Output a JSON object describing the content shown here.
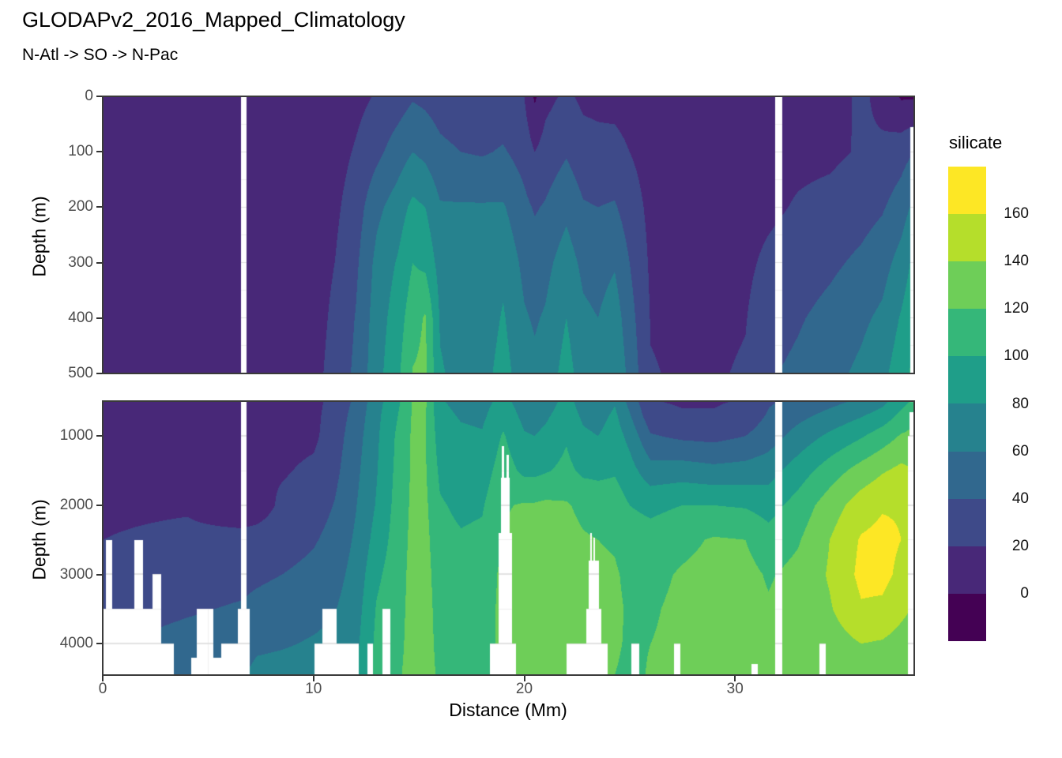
{
  "header": {
    "title": "GLODAPv2_2016_Mapped_Climatology",
    "subtitle": "N-Atl -> SO -> N-Pac"
  },
  "axes": {
    "x": {
      "label": "Distance (Mm)",
      "ticks": [
        0,
        10,
        20,
        30
      ]
    },
    "y": {
      "label": "Depth (m)",
      "top_ticks": [
        0,
        100,
        200,
        300,
        400,
        500
      ],
      "bottom_ticks": [
        1000,
        2000,
        3000,
        4000
      ]
    }
  },
  "legend": {
    "title": "silicate",
    "tick_labels": [
      160,
      140,
      120,
      100,
      80,
      60,
      40,
      20,
      0
    ]
  },
  "chart_data": {
    "type": "heatmap",
    "subtype": "filled_contour_section",
    "variable": "silicate",
    "title": "GLODAPv2_2016_Mapped_Climatology",
    "subtitle": "N-Atl -> SO -> N-Pac",
    "xlabel": "Distance (Mm)",
    "ylabel": "Depth (m)",
    "x_range": [
      0,
      38.5
    ],
    "panels": [
      {
        "depth_range": [
          0,
          500
        ]
      },
      {
        "depth_range": [
          500,
          4450
        ]
      }
    ],
    "levels": [
      0,
      20,
      40,
      60,
      80,
      100,
      120,
      140,
      160
    ],
    "colors": [
      "#440154",
      "#482878",
      "#3e4a89",
      "#31688e",
      "#26828e",
      "#1f9e89",
      "#35b779",
      "#6ece58",
      "#b5de2b",
      "#fde725"
    ],
    "grid_lines": {
      "major": "#e2e2e2",
      "minor": "#efefef"
    },
    "grid": {
      "x": [
        0,
        4,
        6.6,
        7.3,
        8.5,
        10,
        11,
        12,
        13,
        14,
        14.7,
        15.3,
        16,
        17,
        18,
        19,
        20,
        20.5,
        21,
        22,
        22.8,
        23.5,
        24.3,
        25,
        26,
        27.5,
        29,
        30.5,
        31.6,
        33,
        34.5,
        36,
        37,
        37.9,
        38.5
      ],
      "depth": [
        0,
        100,
        200,
        300,
        400,
        500,
        700,
        1000,
        1500,
        2000,
        2500,
        3000,
        3500,
        4000,
        4450
      ],
      "values": [
        [
          4,
          6,
          8,
          9,
          10,
          11,
          12,
          13,
          15,
          17,
          20,
          26,
          32,
          38,
          46
        ],
        [
          4,
          6,
          8,
          9,
          10,
          11,
          12,
          13,
          15,
          18,
          24,
          32,
          38,
          46,
          54
        ],
        [
          5,
          7,
          9,
          10,
          11,
          12,
          13,
          13,
          16,
          8,
          26,
          34,
          42,
          50,
          58
        ],
        [
          5,
          7,
          9,
          10,
          11,
          13,
          14,
          14,
          18,
          10,
          28,
          36,
          46,
          56,
          66
        ],
        [
          5,
          7,
          9,
          10,
          11,
          13,
          14,
          14,
          18,
          24,
          30,
          40,
          50,
          58,
          68
        ],
        [
          6,
          8,
          10,
          11,
          12,
          14,
          15,
          16,
          24,
          30,
          38,
          46,
          54,
          62,
          70
        ],
        [
          8,
          12,
          16,
          20,
          24,
          27,
          29,
          31,
          35,
          41,
          47,
          53,
          59,
          65,
          71
        ],
        [
          14,
          22,
          30,
          36,
          41,
          44,
          47,
          51,
          55,
          59,
          63,
          67,
          71,
          75,
          79
        ],
        [
          22,
          35,
          55,
          66,
          70,
          73,
          75,
          77,
          79,
          82,
          88,
          96,
          102,
          105,
          107
        ],
        [
          30,
          50,
          70,
          82,
          90,
          96,
          100,
          104,
          106,
          108,
          110,
          112,
          114,
          115,
          117
        ],
        [
          38,
          60,
          85,
          100,
          112,
          121,
          122,
          123,
          123,
          124,
          125,
          126,
          126,
          127,
          128
        ],
        [
          35,
          55,
          80,
          95,
          122,
          124,
          121,
          121,
          122,
          124,
          126,
          127,
          128,
          128,
          129
        ],
        [
          30,
          45,
          62,
          72,
          78,
          82,
          86,
          90,
          96,
          102,
          106,
          110,
          112,
          114,
          116
        ],
        [
          26,
          40,
          62,
          68,
          70,
          74,
          78,
          84,
          90,
          96,
          102,
          108,
          112,
          114,
          116
        ],
        [
          26,
          38,
          62,
          66,
          68,
          72,
          76,
          82,
          90,
          98,
          104,
          110,
          113,
          115,
          117
        ],
        [
          28,
          42,
          62,
          75,
          82,
          88,
          94,
          102,
          110,
          118,
          122,
          124,
          124,
          123,
          122
        ],
        [
          20,
          32,
          45,
          55,
          62,
          68,
          74,
          82,
          95,
          122,
          126,
          128,
          128,
          128,
          126
        ],
        [
          -3,
          20,
          38,
          50,
          58,
          64,
          72,
          80,
          95,
          122,
          127,
          129,
          129,
          128,
          126
        ],
        [
          14,
          28,
          42,
          54,
          62,
          68,
          76,
          85,
          98,
          124,
          128,
          130,
          130,
          129,
          127
        ],
        [
          24,
          38,
          55,
          70,
          80,
          88,
          92,
          98,
          105,
          122,
          127,
          129,
          129,
          128,
          126
        ],
        [
          16,
          28,
          42,
          55,
          64,
          70,
          76,
          84,
          96,
          115,
          122,
          126,
          127,
          126,
          124
        ],
        [
          15,
          26,
          40,
          52,
          60,
          66,
          72,
          80,
          95,
          112,
          120,
          124,
          125,
          124,
          122
        ],
        [
          14,
          26,
          42,
          58,
          70,
          78,
          84,
          90,
          98,
          110,
          118,
          122,
          123,
          122,
          120
        ],
        [
          12,
          20,
          30,
          40,
          48,
          54,
          62,
          74,
          88,
          100,
          110,
          116,
          118,
          118,
          117
        ],
        [
          9,
          12,
          15,
          17,
          19,
          21,
          27,
          42,
          68,
          95,
          108,
          115,
          118,
          120,
          121
        ],
        [
          8,
          10,
          13,
          15,
          17,
          18,
          22,
          36,
          70,
          100,
          115,
          122,
          124,
          124,
          122
        ],
        [
          8,
          10,
          12,
          14,
          16,
          18,
          22,
          34,
          66,
          100,
          122,
          126,
          128,
          126,
          124
        ],
        [
          8,
          10,
          13,
          16,
          19,
          22,
          28,
          40,
          68,
          98,
          120,
          126,
          128,
          126,
          122
        ],
        [
          9,
          12,
          16,
          24,
          32,
          38,
          42,
          50,
          72,
          92,
          108,
          118,
          122,
          122,
          120
        ],
        [
          10,
          15,
          22,
          30,
          38,
          44,
          54,
          68,
          90,
          108,
          118,
          126,
          130,
          128,
          124
        ],
        [
          10,
          16,
          26,
          36,
          46,
          54,
          66,
          84,
          110,
          130,
          140,
          142,
          138,
          130,
          124
        ],
        [
          24,
          22,
          32,
          44,
          56,
          64,
          78,
          98,
          128,
          150,
          162,
          165,
          158,
          140,
          126
        ],
        [
          14,
          24,
          38,
          52,
          64,
          74,
          88,
          110,
          138,
          158,
          166,
          166,
          156,
          138,
          124
        ],
        [
          -2,
          32,
          50,
          68,
          82,
          92,
          105,
          122,
          145,
          158,
          160,
          155,
          145,
          132,
          122
        ],
        [
          -2,
          40,
          65,
          85,
          95,
          105,
          115,
          125,
          140,
          148,
          150,
          145,
          138,
          128,
          120
        ]
      ]
    },
    "gaps": [
      [
        6.53,
        6.8,
        0,
        4460
      ],
      [
        31.93,
        32.27,
        0,
        4460
      ],
      [
        38.33,
        38.55,
        55,
        500
      ],
      [
        38.3,
        38.55,
        650,
        1000
      ],
      [
        38.2,
        38.55,
        1000,
        4460
      ],
      [
        0,
        2.75,
        3500,
        4460
      ],
      [
        0.12,
        0.45,
        2500,
        4460
      ],
      [
        1.5,
        1.9,
        2500,
        4460
      ],
      [
        2.35,
        2.75,
        3000,
        4460
      ],
      [
        2.75,
        3.35,
        4000,
        4460
      ],
      [
        4.45,
        5.25,
        3500,
        4460
      ],
      [
        4.2,
        5.6,
        4200,
        4460
      ],
      [
        5.6,
        6.53,
        4000,
        4460
      ],
      [
        6.4,
        6.95,
        3500,
        4460
      ],
      [
        10.4,
        11.1,
        3500,
        4460
      ],
      [
        10.05,
        12.15,
        4000,
        4460
      ],
      [
        12.55,
        12.8,
        4000,
        4460
      ],
      [
        13.25,
        13.65,
        3500,
        4460
      ],
      [
        18.93,
        19.06,
        1150,
        1600
      ],
      [
        19.16,
        19.28,
        1270,
        1600
      ],
      [
        18.88,
        19.3,
        1600,
        2400
      ],
      [
        18.78,
        19.42,
        2400,
        4000
      ],
      [
        18.35,
        19.6,
        4000,
        4460
      ],
      [
        23.12,
        23.2,
        2400,
        2800
      ],
      [
        23.28,
        23.37,
        2470,
        2800
      ],
      [
        23.05,
        23.55,
        2800,
        3500
      ],
      [
        22.95,
        23.65,
        3500,
        4000
      ],
      [
        22.0,
        23.95,
        4000,
        4460
      ],
      [
        25.1,
        25.45,
        4000,
        4460
      ],
      [
        27.1,
        27.42,
        4000,
        4460
      ],
      [
        30.8,
        31.1,
        4300,
        4460
      ],
      [
        34.0,
        34.32,
        4000,
        4460
      ]
    ]
  }
}
